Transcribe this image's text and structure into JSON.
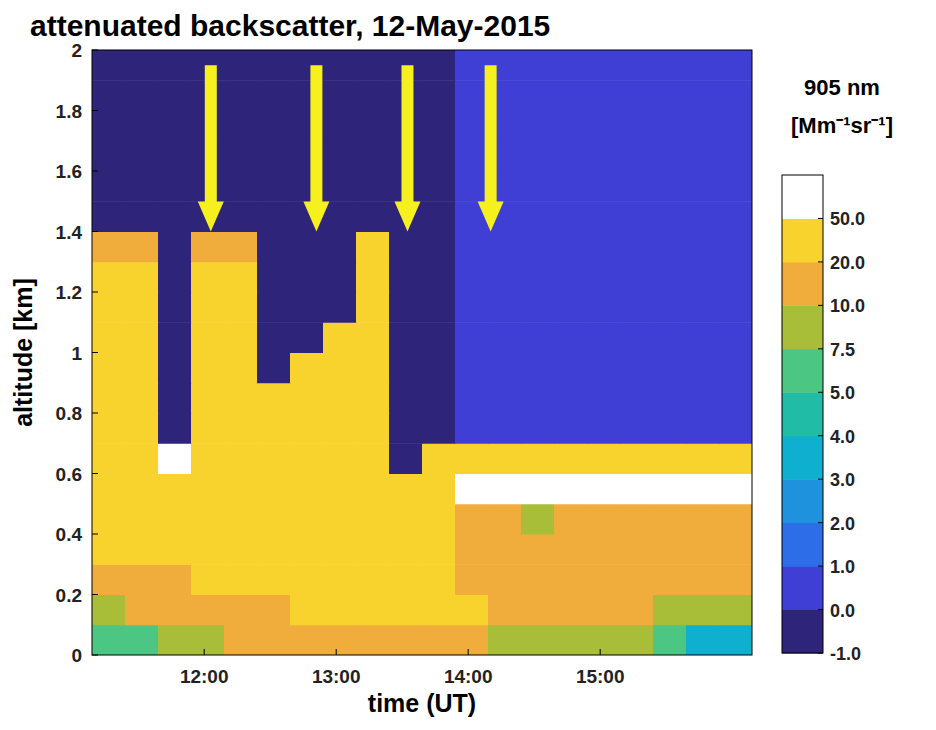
{
  "chart_data": {
    "type": "heatmap",
    "title": "attenuated backscatter, 12-May-2015",
    "x_label": "time (UT)",
    "y_label": "altitude [km]",
    "xlim": [
      11.15,
      16.15
    ],
    "xticks": [
      {
        "value": 12,
        "label": "12:00"
      },
      {
        "value": 13,
        "label": "13:00"
      },
      {
        "value": 14,
        "label": "14:00"
      },
      {
        "value": 15,
        "label": "15:00"
      }
    ],
    "ylim": [
      0,
      2
    ],
    "yticks": [
      0,
      0.2,
      0.4,
      0.6,
      0.8,
      1,
      1.2,
      1.4,
      1.6,
      1.8,
      2
    ],
    "x": [
      11.275,
      11.525,
      11.775,
      12.025,
      12.275,
      12.525,
      12.775,
      13.025,
      13.275,
      13.525,
      13.775,
      14.025,
      14.275,
      14.525,
      14.775,
      15.025,
      15.275,
      15.525,
      15.775,
      16.025
    ],
    "y": [
      0.05,
      0.15,
      0.25,
      0.35,
      0.45,
      0.55,
      0.65,
      0.75,
      0.85,
      0.95,
      1.05,
      1.15,
      1.25,
      1.35,
      1.45,
      1.55,
      1.65,
      1.75,
      1.85,
      1.95
    ],
    "z": [
      [
        6,
        6,
        8.5,
        8.5,
        15,
        15,
        15,
        15,
        15,
        15,
        15,
        15,
        8.5,
        8.5,
        8.5,
        8.5,
        8.5,
        6,
        3.5,
        3.5
      ],
      [
        8.5,
        15,
        15,
        15,
        15,
        15,
        30,
        30,
        30,
        30,
        30,
        30,
        15,
        15,
        15,
        15,
        15,
        8.5,
        8.5,
        8.5
      ],
      [
        15,
        15,
        15,
        30,
        30,
        30,
        30,
        30,
        30,
        30,
        30,
        15,
        15,
        15,
        15,
        15,
        15,
        15,
        15,
        15
      ],
      [
        30,
        30,
        30,
        30,
        30,
        30,
        30,
        30,
        30,
        30,
        30,
        15,
        15,
        15,
        15,
        15,
        15,
        15,
        15,
        15
      ],
      [
        30,
        30,
        30,
        30,
        30,
        30,
        30,
        30,
        30,
        30,
        30,
        15,
        15,
        8.5,
        15,
        15,
        15,
        15,
        15,
        15
      ],
      [
        30,
        30,
        30,
        30,
        30,
        30,
        30,
        30,
        30,
        30,
        30,
        60,
        60,
        60,
        60,
        60,
        60,
        60,
        60,
        60
      ],
      [
        30,
        30,
        60,
        30,
        30,
        30,
        30,
        30,
        30,
        -0.5,
        30,
        30,
        30,
        30,
        30,
        30,
        30,
        30,
        30,
        30
      ],
      [
        30,
        30,
        -0.5,
        30,
        30,
        30,
        30,
        30,
        30,
        -0.5,
        -0.5,
        0.5,
        0.5,
        0.5,
        0.5,
        0.5,
        0.5,
        0.5,
        0.5,
        0.5
      ],
      [
        30,
        30,
        -0.5,
        30,
        30,
        30,
        30,
        30,
        30,
        -0.5,
        -0.5,
        0.5,
        0.5,
        0.5,
        0.5,
        0.5,
        0.5,
        0.5,
        0.5,
        0.5
      ],
      [
        30,
        30,
        -0.5,
        30,
        30,
        -0.5,
        30,
        30,
        30,
        -0.5,
        -0.5,
        0.5,
        0.5,
        0.5,
        0.5,
        0.5,
        0.5,
        0.5,
        0.5,
        0.5
      ],
      [
        30,
        30,
        -0.5,
        30,
        30,
        -0.5,
        -0.5,
        30,
        30,
        -0.5,
        -0.5,
        0.5,
        0.5,
        0.5,
        0.5,
        0.5,
        0.5,
        0.5,
        0.5,
        0.5
      ],
      [
        30,
        30,
        -0.5,
        30,
        30,
        -0.5,
        -0.5,
        -0.5,
        30,
        -0.5,
        -0.5,
        0.5,
        0.5,
        0.5,
        0.5,
        0.5,
        0.5,
        0.5,
        0.5,
        0.5
      ],
      [
        30,
        30,
        -0.5,
        30,
        30,
        -0.5,
        -0.5,
        -0.5,
        30,
        -0.5,
        -0.5,
        0.5,
        0.5,
        0.5,
        0.5,
        0.5,
        0.5,
        0.5,
        0.5,
        0.5
      ],
      [
        15,
        15,
        -0.5,
        15,
        15,
        -0.5,
        -0.5,
        -0.5,
        30,
        -0.5,
        -0.5,
        0.5,
        0.5,
        0.5,
        0.5,
        0.5,
        0.5,
        0.5,
        0.5,
        0.5
      ],
      [
        -0.5,
        -0.5,
        -0.5,
        -0.5,
        -0.5,
        -0.5,
        -0.5,
        -0.5,
        -0.5,
        -0.5,
        -0.5,
        0.5,
        0.5,
        0.5,
        0.5,
        0.5,
        0.5,
        0.5,
        0.5,
        0.5
      ],
      [
        -0.5,
        -0.5,
        -0.5,
        -0.5,
        -0.5,
        -0.5,
        -0.5,
        -0.5,
        -0.5,
        -0.5,
        -0.5,
        0.5,
        0.5,
        0.5,
        0.5,
        0.5,
        0.5,
        0.5,
        0.5,
        0.5
      ],
      [
        -0.5,
        -0.5,
        -0.5,
        -0.5,
        -0.5,
        -0.5,
        -0.5,
        -0.5,
        -0.5,
        -0.5,
        -0.5,
        0.5,
        0.5,
        0.5,
        0.5,
        0.5,
        0.5,
        0.5,
        0.5,
        0.5
      ],
      [
        -0.5,
        -0.5,
        -0.5,
        -0.5,
        -0.5,
        -0.5,
        -0.5,
        -0.5,
        -0.5,
        -0.5,
        -0.5,
        0.5,
        0.5,
        0.5,
        0.5,
        0.5,
        0.5,
        0.5,
        0.5,
        0.5
      ],
      [
        -0.5,
        -0.5,
        -0.5,
        -0.5,
        -0.5,
        -0.5,
        -0.5,
        -0.5,
        -0.5,
        -0.5,
        -0.5,
        0.5,
        0.5,
        0.5,
        0.5,
        0.5,
        0.5,
        0.5,
        0.5,
        0.5
      ],
      [
        -0.5,
        -0.5,
        -0.5,
        -0.5,
        -0.5,
        -0.5,
        -0.5,
        -0.5,
        -0.5,
        -0.5,
        -0.5,
        0.5,
        0.5,
        0.5,
        0.5,
        0.5,
        0.5,
        0.5,
        0.5,
        0.5
      ]
    ],
    "colorbar": {
      "label": [
        "905 nm",
        "[Mm⁻¹sr⁻¹]"
      ],
      "range": [
        -1,
        100
      ],
      "ticks": [
        {
          "value": -1,
          "label": "-1.0"
        },
        {
          "value": 0,
          "label": "0.0"
        },
        {
          "value": 1,
          "label": "1.0"
        },
        {
          "value": 2,
          "label": "2.0"
        },
        {
          "value": 3,
          "label": "3.0"
        },
        {
          "value": 4,
          "label": "4.0"
        },
        {
          "value": 5,
          "label": "5.0"
        },
        {
          "value": 7.5,
          "label": "7.5"
        },
        {
          "value": 10,
          "label": "10.0"
        },
        {
          "value": 20,
          "label": "20.0"
        },
        {
          "value": 50,
          "label": "50.0"
        }
      ],
      "colors": [
        "#2e2479",
        "#3f3fd6",
        "#2d6ee8",
        "#1e92dc",
        "#0fb0cf",
        "#21bca6",
        "#4cc683",
        "#a8bd38",
        "#f0ad3c",
        "#f8d32e",
        "#ffffff"
      ]
    },
    "arrows": [
      {
        "x": 12.05,
        "y_from": 1.95,
        "y_to": 1.4
      },
      {
        "x": 12.85,
        "y_from": 1.95,
        "y_to": 1.4
      },
      {
        "x": 13.54,
        "y_from": 1.95,
        "y_to": 1.4
      },
      {
        "x": 14.17,
        "y_from": 1.95,
        "y_to": 1.4
      }
    ]
  }
}
